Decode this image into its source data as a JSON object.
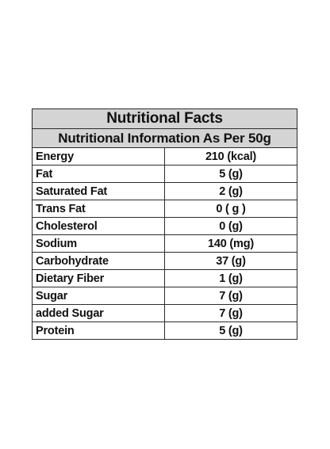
{
  "table": {
    "title": "Nutritional Facts",
    "subtitle": "Nutritional Information As Per 50g",
    "rows": [
      {
        "nutrient": "Energy",
        "amount": "210 (kcal)"
      },
      {
        "nutrient": "Fat",
        "amount": "5 (g)"
      },
      {
        "nutrient": "Saturated Fat",
        "amount": "2 (g)"
      },
      {
        "nutrient": "Trans Fat",
        "amount": "0 ( g )"
      },
      {
        "nutrient": "Cholesterol",
        "amount": "0 (g)"
      },
      {
        "nutrient": "Sodium",
        "amount": "140 (mg)"
      },
      {
        "nutrient": "Carbohydrate",
        "amount": "37 (g)"
      },
      {
        "nutrient": "Dietary Fiber",
        "amount": "1 (g)"
      },
      {
        "nutrient": "Sugar",
        "amount": "7 (g)"
      },
      {
        "nutrient": "added Sugar",
        "amount": "7 (g)"
      },
      {
        "nutrient": "Protein",
        "amount": "5 (g)"
      }
    ]
  }
}
